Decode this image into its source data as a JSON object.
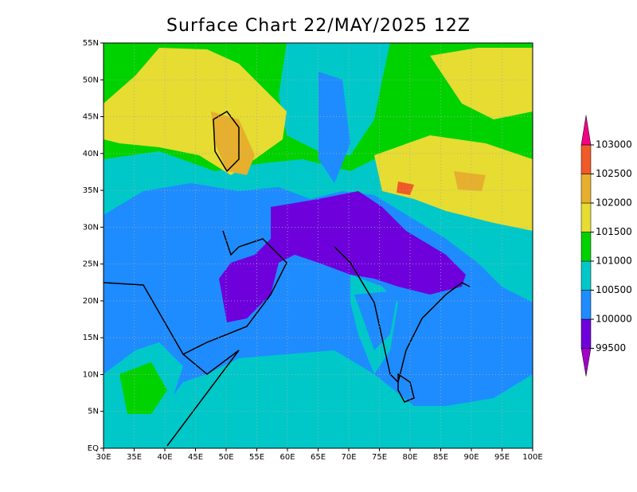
{
  "title": "Surface Chart 22/MAY/2025 12Z",
  "map": {
    "lon_ticks": [
      "30E",
      "35E",
      "40E",
      "45E",
      "50E",
      "55E",
      "60E",
      "65E",
      "70E",
      "75E",
      "80E",
      "85E",
      "90E",
      "95E",
      "100E"
    ],
    "lat_ticks": [
      "EQ",
      "5N",
      "10N",
      "15N",
      "20N",
      "25N",
      "30N",
      "35N",
      "40N",
      "45N",
      "50N",
      "55N"
    ]
  },
  "colorbar": {
    "levels": [
      "99500",
      "100000",
      "100500",
      "101000",
      "101500",
      "102000",
      "102500",
      "103000"
    ],
    "colors": [
      "#a000c8",
      "#6e00dc",
      "#1e8cff",
      "#00c8c8",
      "#00d200",
      "#e6dc32",
      "#e6af2d",
      "#f05a28",
      "#f00082"
    ]
  }
}
